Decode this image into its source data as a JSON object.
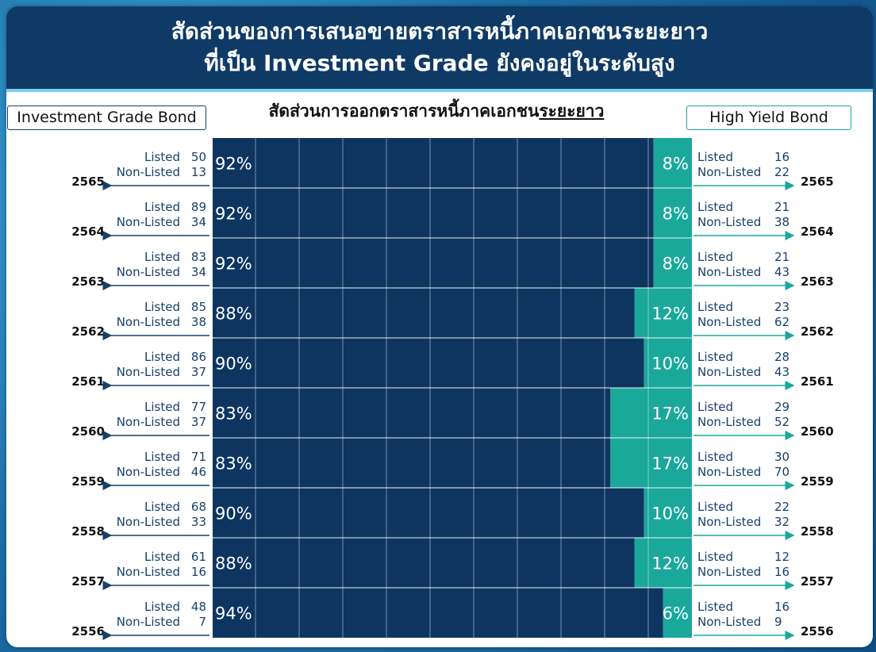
{
  "banner": {
    "line1": "สัดส่วนของการเสนอขายตราสารหนี้ภาคเอกชนระยะยาว",
    "line2": "ที่เป็น Investment Grade ยังคงอยู่ในระดับสูง"
  },
  "legend": {
    "investment_grade": "Investment Grade Bond",
    "high_yield": "High Yield Bond"
  },
  "colors": {
    "banner": "#0f3a66",
    "investment_grade": "#0d3560",
    "high_yield": "#1aa89b",
    "arrow_left": "#17406b",
    "arrow_right": "#1aa89b",
    "count_text": "#17406b"
  },
  "labels": {
    "listed": "Listed",
    "non_listed": "Non-Listed"
  },
  "chart_data": {
    "type": "bar",
    "title": "สัดส่วนการออกตราสารหนี้ภาคเอกชนระยะยาว",
    "title_plain": "สัดส่วนการออกตราสารหนี้ภาคเอกชน",
    "title_underlined": "ระยะยาว",
    "stacked": true,
    "orientation": "horizontal",
    "unit": "%",
    "xlim": [
      0,
      100
    ],
    "grid": true,
    "categories": [
      "2565",
      "2564",
      "2563",
      "2562",
      "2561",
      "2560",
      "2559",
      "2558",
      "2557",
      "2556"
    ],
    "series": [
      {
        "name": "Investment Grade Bond",
        "values": [
          92,
          92,
          92,
          88,
          90,
          83,
          83,
          90,
          88,
          94
        ]
      },
      {
        "name": "High Yield Bond",
        "values": [
          8,
          8,
          8,
          12,
          10,
          17,
          17,
          10,
          12,
          6
        ]
      }
    ],
    "investment_grade_counts": {
      "listed": [
        50,
        89,
        83,
        85,
        86,
        77,
        71,
        68,
        61,
        48
      ],
      "non_listed": [
        13,
        34,
        34,
        38,
        37,
        37,
        46,
        33,
        16,
        7
      ]
    },
    "high_yield_counts": {
      "listed": [
        16,
        21,
        21,
        23,
        28,
        29,
        30,
        22,
        12,
        16
      ],
      "non_listed": [
        22,
        38,
        43,
        62,
        43,
        52,
        70,
        32,
        16,
        9
      ]
    }
  }
}
